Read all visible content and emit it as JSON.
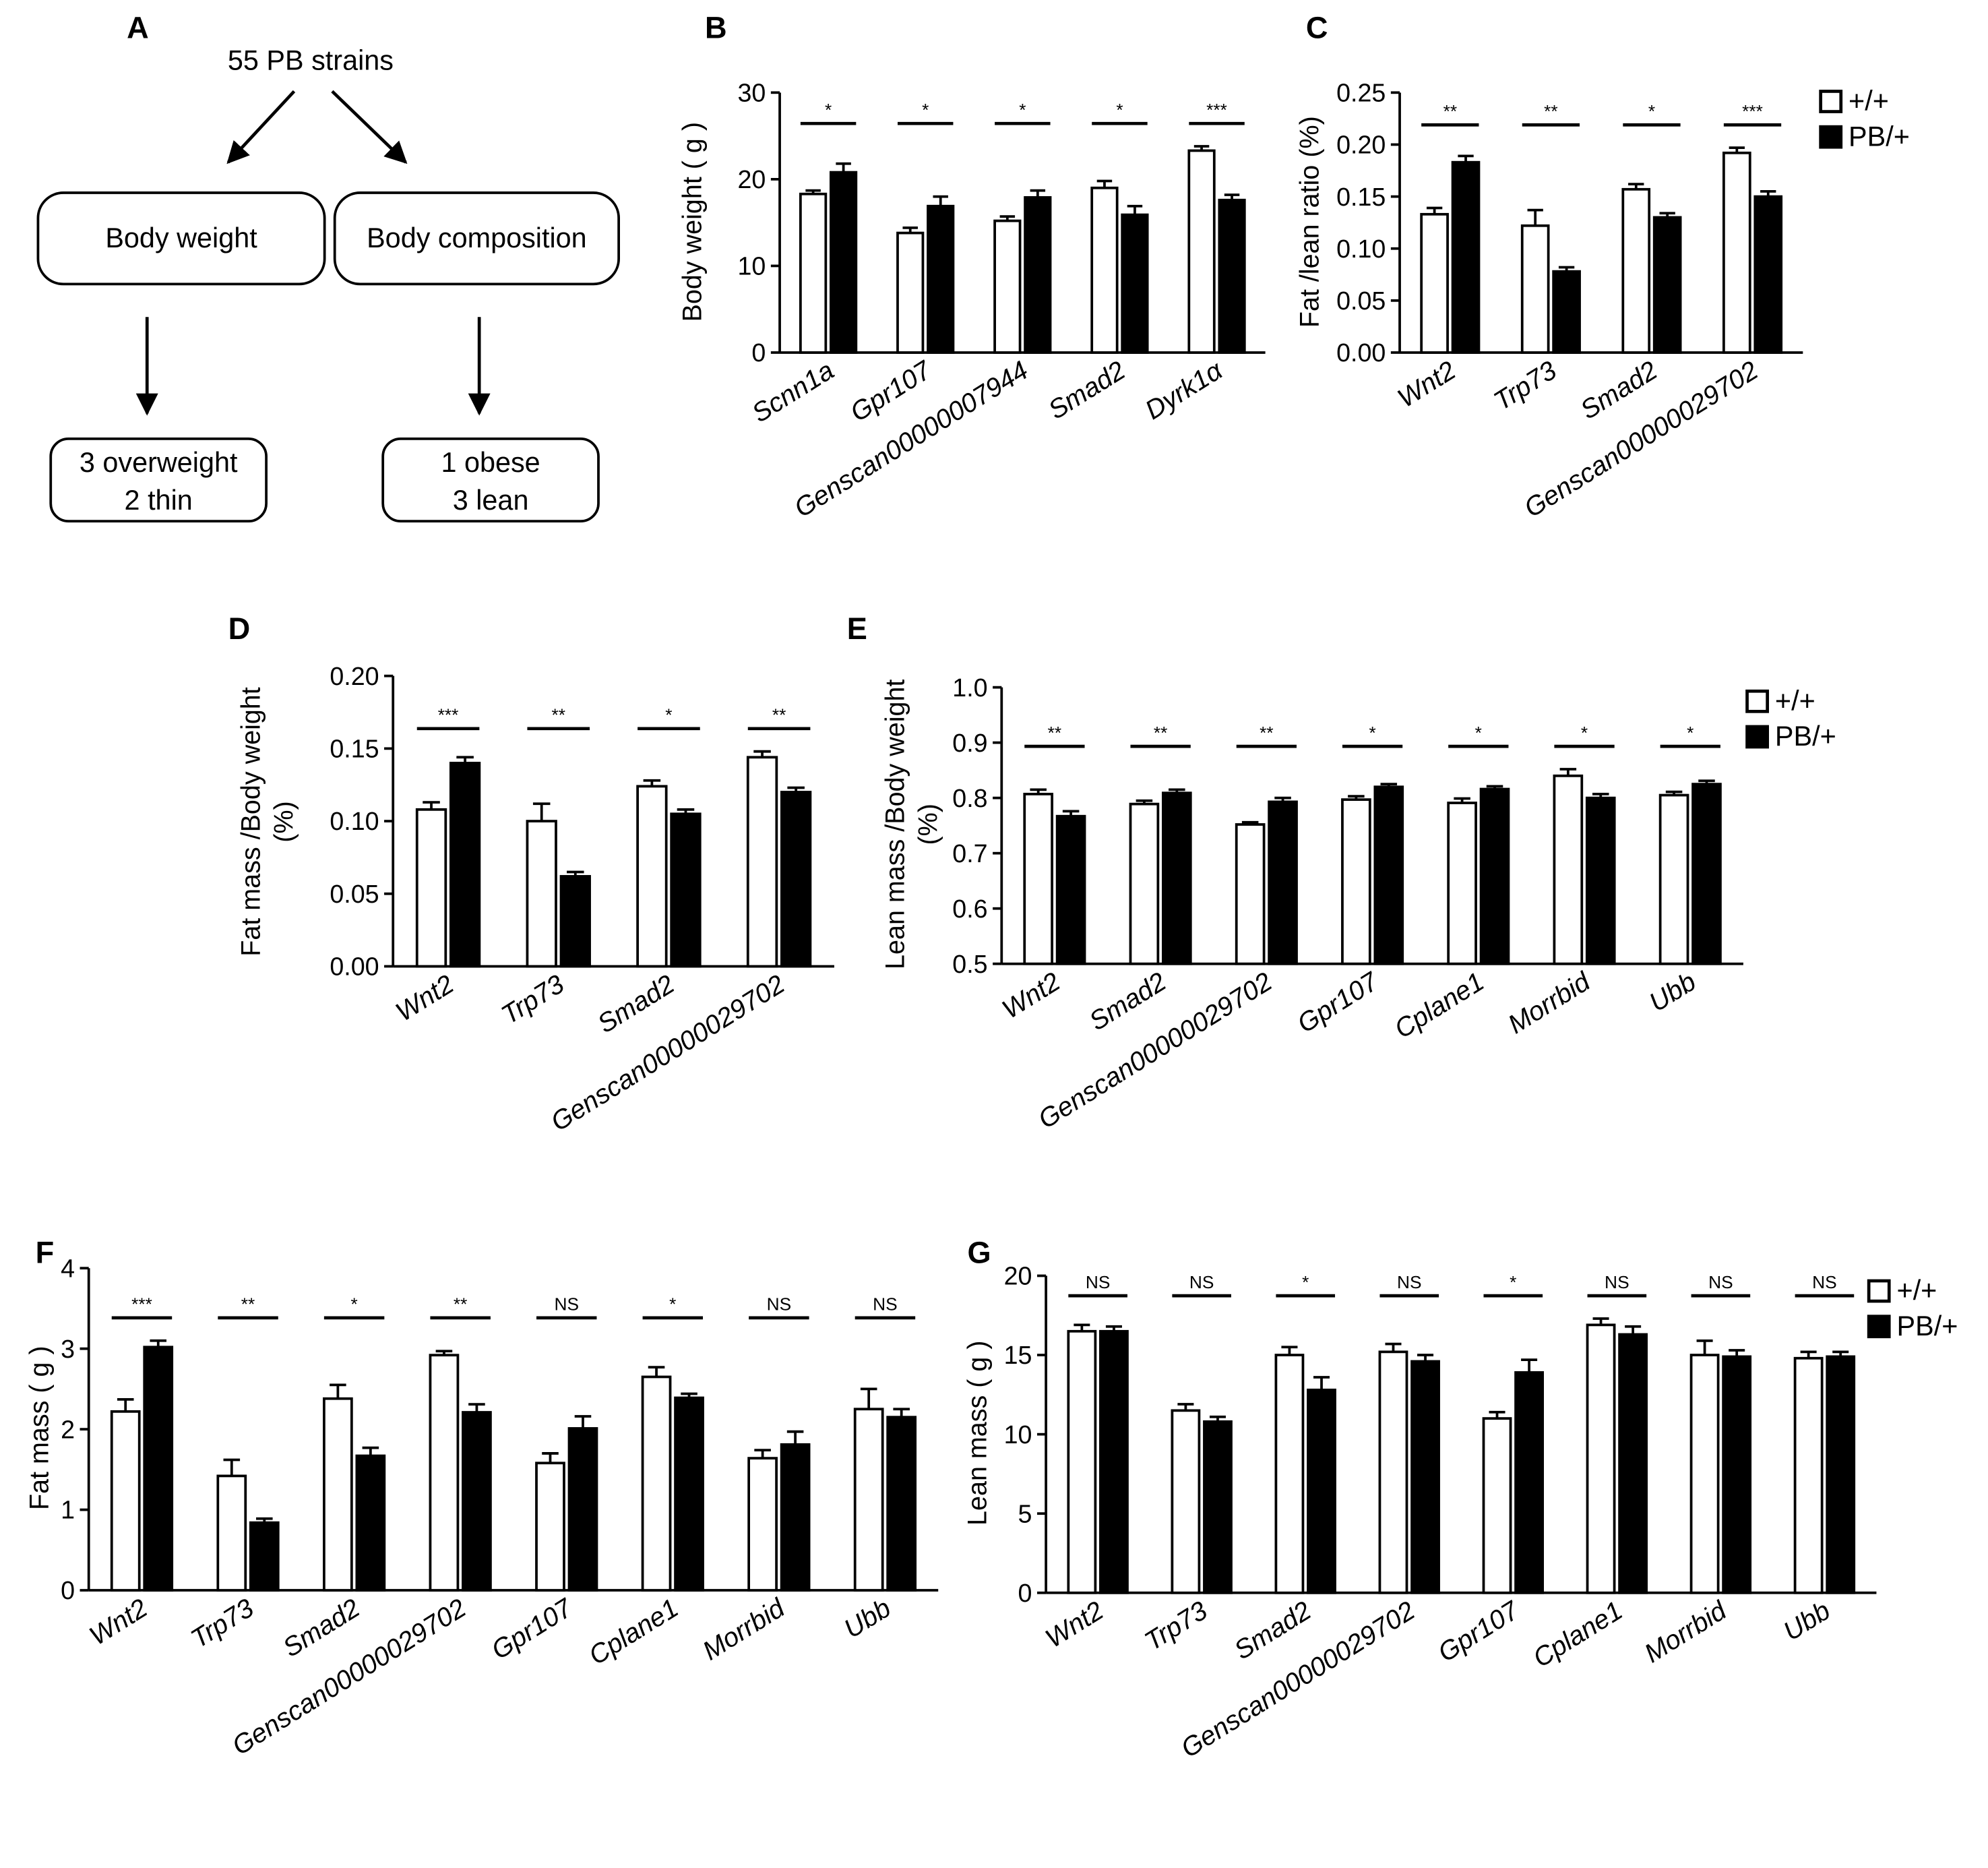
{
  "legend": {
    "wt": "+/+",
    "mut": "PB/+"
  },
  "flowchart": {
    "letter": "A",
    "top": "55 PB strains",
    "left_box": "Body weight",
    "right_box": "Body composition",
    "left_result": [
      "3 overweight",
      "2 thin"
    ],
    "right_result": [
      "1 obese",
      "3 lean"
    ]
  },
  "chart_data": [
    {
      "panel": "B",
      "type": "bar",
      "title": "",
      "xlabel": "",
      "ylabel": "Body weight ( g )",
      "ylim": [
        0,
        30
      ],
      "yticks": [
        "0",
        "10",
        "20",
        "30"
      ],
      "categories": [
        "Scnn1a",
        "Gpr107",
        "Genscan00000007944",
        "Smad2",
        "Dyrk1α"
      ],
      "series": [
        {
          "name": "+/+",
          "values": [
            18.3,
            13.8,
            15.2,
            19.0,
            23.3
          ],
          "errors": [
            0.4,
            0.6,
            0.5,
            0.8,
            0.5
          ]
        },
        {
          "name": "PB/+",
          "values": [
            20.8,
            16.9,
            17.9,
            15.9,
            17.6
          ],
          "errors": [
            1.0,
            1.1,
            0.8,
            1.0,
            0.6
          ]
        }
      ],
      "significance": [
        "*",
        "*",
        "*",
        "*",
        "***"
      ]
    },
    {
      "panel": "C",
      "type": "bar",
      "title": "",
      "xlabel": "",
      "ylabel": "Fat /lean ratio (%)",
      "ylim": [
        0,
        0.25
      ],
      "yticks": [
        "0.00",
        "0.05",
        "0.10",
        "0.15",
        "0.20",
        "0.25"
      ],
      "categories": [
        "Wnt2",
        "Trp73",
        "Smad2",
        "Genscan00000029702"
      ],
      "series": [
        {
          "name": "+/+",
          "values": [
            0.133,
            0.122,
            0.157,
            0.192
          ],
          "errors": [
            0.006,
            0.015,
            0.005,
            0.005
          ]
        },
        {
          "name": "PB/+",
          "values": [
            0.183,
            0.078,
            0.13,
            0.15
          ],
          "errors": [
            0.006,
            0.004,
            0.004,
            0.005
          ]
        }
      ],
      "significance": [
        "**",
        "**",
        "*",
        "***"
      ]
    },
    {
      "panel": "D",
      "type": "bar",
      "title": "",
      "xlabel": "",
      "ylabel": "Fat mass /Body weight (%)",
      "ylim": [
        0,
        0.2
      ],
      "yticks": [
        "0.00",
        "0.05",
        "0.10",
        "0.15",
        "0.20"
      ],
      "categories": [
        "Wnt2",
        "Trp73",
        "Smad2",
        "Genscan00000029702"
      ],
      "series": [
        {
          "name": "+/+",
          "values": [
            0.108,
            0.1,
            0.124,
            0.144
          ],
          "errors": [
            0.005,
            0.012,
            0.004,
            0.004
          ]
        },
        {
          "name": "PB/+",
          "values": [
            0.14,
            0.062,
            0.105,
            0.12
          ],
          "errors": [
            0.004,
            0.003,
            0.003,
            0.003
          ]
        }
      ],
      "significance": [
        "***",
        "**",
        "*",
        "**"
      ]
    },
    {
      "panel": "E",
      "type": "bar",
      "title": "",
      "xlabel": "",
      "ylabel": "Lean mass /Body weight (%)",
      "ylim": [
        0.5,
        1.0
      ],
      "yticks": [
        "0.5",
        "0.6",
        "0.7",
        "0.8",
        "0.9",
        "1.0"
      ],
      "categories": [
        "Wnt2",
        "Smad2",
        "Genscan00000029702",
        "Gpr107",
        "Cplane1",
        "Morrbid",
        "Ubb"
      ],
      "series": [
        {
          "name": "+/+",
          "values": [
            0.807,
            0.789,
            0.752,
            0.797,
            0.791,
            0.84,
            0.805
          ],
          "errors": [
            0.008,
            0.006,
            0.004,
            0.006,
            0.008,
            0.012,
            0.006
          ]
        },
        {
          "name": "PB/+",
          "values": [
            0.767,
            0.809,
            0.793,
            0.82,
            0.816,
            0.8,
            0.825
          ],
          "errors": [
            0.009,
            0.006,
            0.007,
            0.005,
            0.005,
            0.007,
            0.006
          ]
        }
      ],
      "significance": [
        "**",
        "**",
        "**",
        "*",
        "*",
        "*",
        "*"
      ]
    },
    {
      "panel": "F",
      "type": "bar",
      "title": "",
      "xlabel": "",
      "ylabel": "Fat mass ( g )",
      "ylim": [
        0,
        4
      ],
      "yticks": [
        "0",
        "1",
        "2",
        "3",
        "4"
      ],
      "categories": [
        "Wnt2",
        "Trp73",
        "Smad2",
        "Genscan00000029702",
        "Gpr107",
        "Cplane1",
        "Morrbid",
        "Ubb"
      ],
      "series": [
        {
          "name": "+/+",
          "values": [
            2.22,
            1.42,
            2.38,
            2.92,
            1.58,
            2.65,
            1.64,
            2.25
          ],
          "errors": [
            0.15,
            0.2,
            0.17,
            0.05,
            0.12,
            0.12,
            0.1,
            0.25
          ]
        },
        {
          "name": "PB/+",
          "values": [
            3.02,
            0.84,
            1.67,
            2.21,
            2.01,
            2.39,
            1.81,
            2.15
          ],
          "errors": [
            0.08,
            0.05,
            0.1,
            0.1,
            0.15,
            0.05,
            0.16,
            0.1
          ]
        }
      ],
      "significance": [
        "***",
        "**",
        "*",
        "**",
        "NS",
        "*",
        "NS",
        "NS"
      ]
    },
    {
      "panel": "G",
      "type": "bar",
      "title": "",
      "xlabel": "",
      "ylabel": "Lean mass ( g )",
      "ylim": [
        0,
        20
      ],
      "yticks": [
        "0",
        "5",
        "10",
        "15",
        "20"
      ],
      "categories": [
        "Wnt2",
        "Trp73",
        "Smad2",
        "Genscan00000029702",
        "Gpr107",
        "Cplane1",
        "Morrbid",
        "Ubb"
      ],
      "series": [
        {
          "name": "+/+",
          "values": [
            16.5,
            11.5,
            15.0,
            15.2,
            11.0,
            16.9,
            15.0,
            14.8
          ],
          "errors": [
            0.4,
            0.4,
            0.5,
            0.5,
            0.4,
            0.4,
            0.9,
            0.4
          ]
        },
        {
          "name": "PB/+",
          "values": [
            16.5,
            10.8,
            12.8,
            14.6,
            13.9,
            16.3,
            14.9,
            14.9
          ],
          "errors": [
            0.3,
            0.3,
            0.8,
            0.4,
            0.8,
            0.5,
            0.4,
            0.3
          ]
        }
      ],
      "significance": [
        "NS",
        "NS",
        "*",
        "NS",
        "*",
        "NS",
        "NS",
        "NS"
      ]
    }
  ]
}
